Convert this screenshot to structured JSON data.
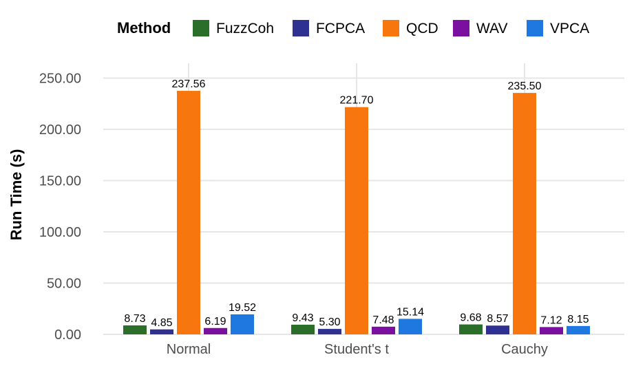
{
  "chart_data": {
    "type": "bar",
    "title": "",
    "xlabel": "",
    "ylabel": "Run Time (s)",
    "ylim": [
      0,
      262
    ],
    "yticks": [
      0,
      50,
      100,
      150,
      200,
      250
    ],
    "ytick_labels": [
      "0.00",
      "50.00",
      "100.00",
      "150.00",
      "200.00",
      "250.00"
    ],
    "categories": [
      "Normal",
      "Student's t",
      "Cauchy"
    ],
    "legend": {
      "title": "Method",
      "position": "top"
    },
    "series": [
      {
        "name": "FuzzCoh",
        "color": "#2a6e2a",
        "values": [
          8.73,
          9.43,
          9.68
        ],
        "labels": [
          "8.73",
          "9.43",
          "9.68"
        ]
      },
      {
        "name": "FCPCA",
        "color": "#2e3192",
        "values": [
          4.85,
          5.3,
          8.57
        ],
        "labels": [
          "4.85",
          "5.30",
          "8.57"
        ]
      },
      {
        "name": "QCD",
        "color": "#f7760e",
        "values": [
          237.56,
          221.7,
          235.5
        ],
        "labels": [
          "237.56",
          "221.70",
          "235.50"
        ]
      },
      {
        "name": "WAV",
        "color": "#7b0fa0",
        "values": [
          6.19,
          7.48,
          7.12
        ],
        "labels": [
          "6.19",
          "7.48",
          "7.12"
        ]
      },
      {
        "name": "VPCA",
        "color": "#1f78e0",
        "values": [
          19.52,
          15.14,
          8.15
        ],
        "labels": [
          "19.52",
          "15.14",
          "8.15"
        ]
      }
    ]
  }
}
